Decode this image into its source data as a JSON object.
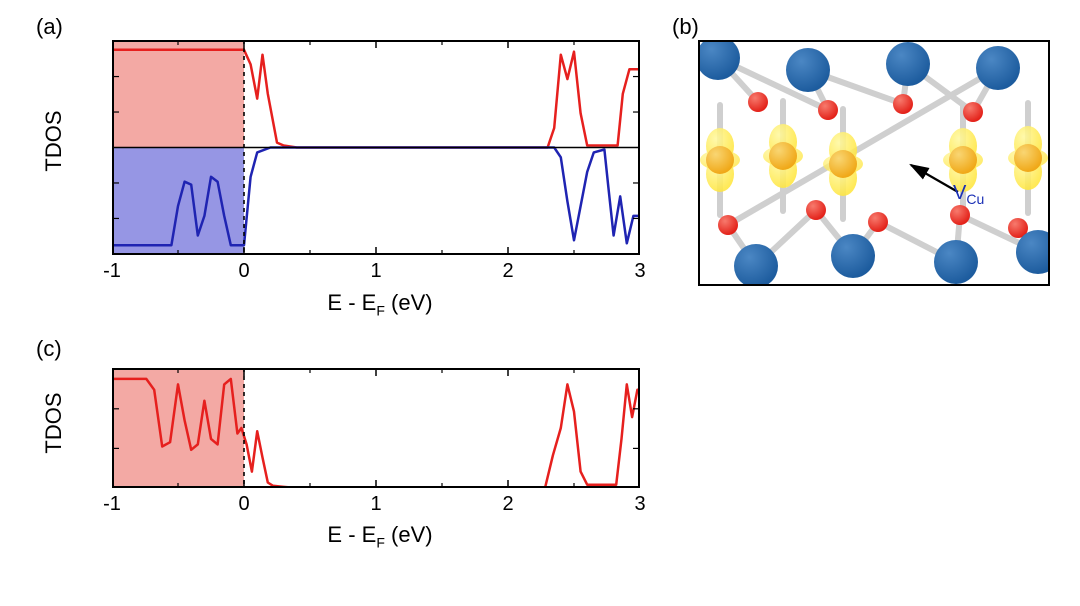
{
  "panels": {
    "a": {
      "label": "(a)"
    },
    "b": {
      "label": "(b)"
    },
    "c": {
      "label": "(c)"
    }
  },
  "chart_a": {
    "type": "line",
    "xlabel": "E - E",
    "xlabel_sub": "F",
    "xlabel_suffix": " (eV)",
    "ylabel": "TDOS",
    "xlim": [
      -1,
      3
    ],
    "xtick_step": 1,
    "xtick_labels": [
      "-1",
      "0",
      "1",
      "2",
      "3"
    ],
    "axis_fontsize": 22,
    "tick_fontsize": 20,
    "line_width": 2.5,
    "background_color": "#ffffff",
    "fill_occupied_up": "#f3a9a4",
    "fill_occupied_down": "#9696e4",
    "line_color_up": "#e6201e",
    "line_color_down": "#1f24b2",
    "fermi_line_color": "#000000",
    "fermi_dash": "4,4",
    "spin_up_x": [
      -1.0,
      -0.9,
      -0.8,
      -0.7,
      -0.6,
      -0.5,
      -0.4,
      -0.3,
      -0.2,
      -0.1,
      0.0,
      0.05,
      0.1,
      0.14,
      0.18,
      0.25,
      0.3,
      0.4,
      2.3,
      2.35,
      2.4,
      2.45,
      2.5,
      2.55,
      2.6,
      2.83,
      2.87,
      2.92,
      2.96,
      3.0
    ],
    "spin_up_y": [
      1.0,
      1.0,
      1.0,
      1.0,
      1.0,
      1.0,
      1.0,
      1.0,
      1.0,
      1.0,
      1.0,
      0.85,
      0.5,
      0.95,
      0.55,
      0.05,
      0.02,
      0.0,
      0.0,
      0.2,
      0.95,
      0.7,
      0.98,
      0.35,
      0.02,
      0.02,
      0.55,
      0.8,
      0.8,
      0.8
    ],
    "spin_down_x": [
      -1.0,
      -0.8,
      -0.75,
      -0.7,
      -0.62,
      -0.55,
      -0.5,
      -0.45,
      -0.4,
      -0.35,
      -0.3,
      -0.25,
      -0.2,
      -0.15,
      -0.1,
      -0.05,
      0.0,
      0.05,
      0.1,
      0.2,
      2.35,
      2.4,
      2.45,
      2.5,
      2.55,
      2.6,
      2.65,
      2.73,
      2.76,
      2.8,
      2.85,
      2.9,
      2.95,
      3.0
    ],
    "spin_down_y": [
      1.0,
      1.0,
      1.0,
      1.0,
      1.0,
      1.0,
      0.6,
      0.35,
      0.38,
      0.9,
      0.7,
      0.3,
      0.35,
      0.7,
      1.0,
      1.0,
      1.0,
      0.3,
      0.05,
      0.0,
      0.0,
      0.1,
      0.55,
      0.95,
      0.6,
      0.25,
      0.05,
      0.02,
      0.4,
      0.9,
      0.5,
      0.98,
      0.7,
      0.7
    ],
    "y_half_range": 1.1
  },
  "chart_c": {
    "type": "line",
    "xlabel": "E - E",
    "xlabel_sub": "F",
    "xlabel_suffix": " (eV)",
    "ylabel": "TDOS",
    "xlim": [
      -1,
      3
    ],
    "xtick_step": 1,
    "xtick_labels": [
      "-1",
      "0",
      "1",
      "2",
      "3"
    ],
    "axis_fontsize": 22,
    "tick_fontsize": 20,
    "line_width": 2.5,
    "background_color": "#ffffff",
    "fill_occupied": "#f3a9a4",
    "line_color": "#e6201e",
    "fermi_line_color": "#000000",
    "fermi_dash": "4,4",
    "data_x": [
      -1.0,
      -0.8,
      -0.74,
      -0.68,
      -0.62,
      -0.56,
      -0.5,
      -0.45,
      -0.4,
      -0.35,
      -0.3,
      -0.25,
      -0.2,
      -0.15,
      -0.1,
      -0.05,
      -0.02,
      0.02,
      0.06,
      0.1,
      0.14,
      0.18,
      0.22,
      0.3,
      0.4,
      2.28,
      2.34,
      2.4,
      2.45,
      2.5,
      2.55,
      2.6,
      2.82,
      2.86,
      2.9,
      2.94,
      2.98,
      3.0
    ],
    "data_y": [
      1.0,
      1.0,
      1.0,
      0.9,
      0.38,
      0.42,
      0.95,
      0.62,
      0.35,
      0.4,
      0.8,
      0.45,
      0.4,
      0.95,
      1.0,
      0.5,
      0.55,
      0.4,
      0.15,
      0.52,
      0.28,
      0.05,
      0.02,
      0.01,
      0.0,
      0.0,
      0.3,
      0.55,
      0.95,
      0.7,
      0.15,
      0.03,
      0.03,
      0.45,
      0.95,
      0.65,
      0.9,
      0.9
    ],
    "y_range": 1.1
  },
  "structure_b": {
    "type": "atomic_structure",
    "annotation_text": "V",
    "annotation_sub": "Cu",
    "annotation_color": "#1a2fb5",
    "annotation_fontsize": 20,
    "atoms": {
      "large_blue": {
        "color": "#1d5c9e",
        "highlight": "#4b87c4",
        "radius": 22
      },
      "small_red": {
        "color": "#e32119",
        "highlight": "#f77a6d",
        "radius": 10
      },
      "orange": {
        "color": "#f0a818",
        "highlight": "#f9d673",
        "radius": 14
      }
    },
    "bond_color": "#cfcfcf",
    "bond_width": 6,
    "isosurface_color": "#ffe640",
    "arrow_color": "#000000",
    "border_color": "#000000",
    "positions": {
      "blue": [
        [
          20,
          18
        ],
        [
          110,
          30
        ],
        [
          210,
          24
        ],
        [
          300,
          28
        ],
        [
          58,
          226
        ],
        [
          155,
          216
        ],
        [
          258,
          222
        ],
        [
          340,
          212
        ]
      ],
      "red": [
        [
          60,
          62
        ],
        [
          130,
          70
        ],
        [
          205,
          64
        ],
        [
          275,
          72
        ],
        [
          30,
          185
        ],
        [
          118,
          170
        ],
        [
          180,
          182
        ],
        [
          262,
          175
        ],
        [
          320,
          188
        ]
      ],
      "orange": [
        [
          22,
          120
        ],
        [
          85,
          116
        ],
        [
          145,
          124
        ],
        [
          265,
          120
        ],
        [
          330,
          118
        ]
      ]
    },
    "vacancy_xy": [
      205,
      122
    ],
    "iso_positions": [
      [
        85,
        116
      ],
      [
        145,
        124
      ],
      [
        265,
        120
      ],
      [
        330,
        118
      ],
      [
        22,
        120
      ]
    ]
  }
}
